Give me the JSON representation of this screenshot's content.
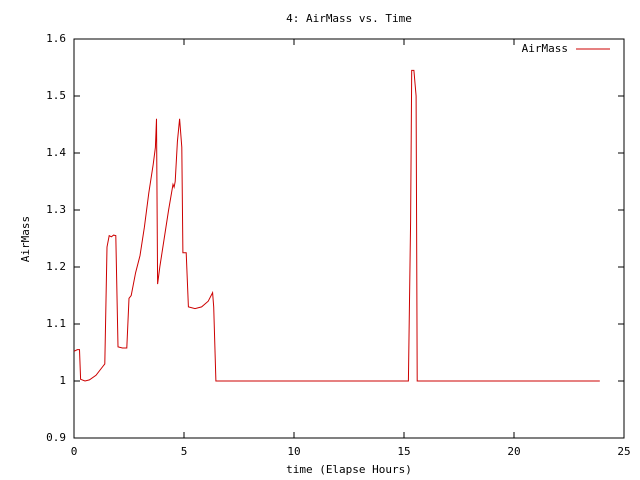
{
  "chart_data": {
    "type": "line",
    "title": "4: AirMass vs. Time",
    "x_label": "time (Elapse Hours)",
    "y_label": "AirMass",
    "x": [
      0,
      0.15,
      0.25,
      0.3,
      0.5,
      0.7,
      1.0,
      1.3,
      1.4,
      1.5,
      1.6,
      1.7,
      1.8,
      1.9,
      2.0,
      2.2,
      2.4,
      2.5,
      2.6,
      2.8,
      3.0,
      3.2,
      3.4,
      3.6,
      3.7,
      3.75,
      3.8,
      3.9,
      4.1,
      4.3,
      4.5,
      4.55,
      4.6,
      4.7,
      4.8,
      4.9,
      4.95,
      5.1,
      5.2,
      5.5,
      5.8,
      6.1,
      6.3,
      6.35,
      6.45,
      15.2,
      15.3,
      15.35,
      15.45,
      15.55,
      15.6,
      23.9
    ],
    "series": [
      {
        "name": "AirMass",
        "color": "#cc0000",
        "values": [
          1.052,
          1.055,
          1.055,
          1.003,
          1.0,
          1.002,
          1.01,
          1.025,
          1.03,
          1.235,
          1.255,
          1.253,
          1.256,
          1.255,
          1.06,
          1.058,
          1.058,
          1.145,
          1.15,
          1.19,
          1.22,
          1.27,
          1.33,
          1.38,
          1.41,
          1.46,
          1.17,
          1.2,
          1.25,
          1.3,
          1.345,
          1.34,
          1.35,
          1.42,
          1.46,
          1.41,
          1.225,
          1.225,
          1.13,
          1.127,
          1.13,
          1.14,
          1.155,
          1.13,
          1.0,
          1.0,
          1.28,
          1.545,
          1.545,
          1.5,
          1.0,
          1.0
        ]
      }
    ],
    "xlim": [
      0,
      25
    ],
    "xticks": [
      0,
      5,
      10,
      15,
      20,
      25
    ],
    "ylim": [
      0.9,
      1.6
    ],
    "yticks": [
      0.9,
      1,
      1.1,
      1.2,
      1.3,
      1.4,
      1.5,
      1.6
    ],
    "grid": false,
    "legend": "top-right"
  }
}
